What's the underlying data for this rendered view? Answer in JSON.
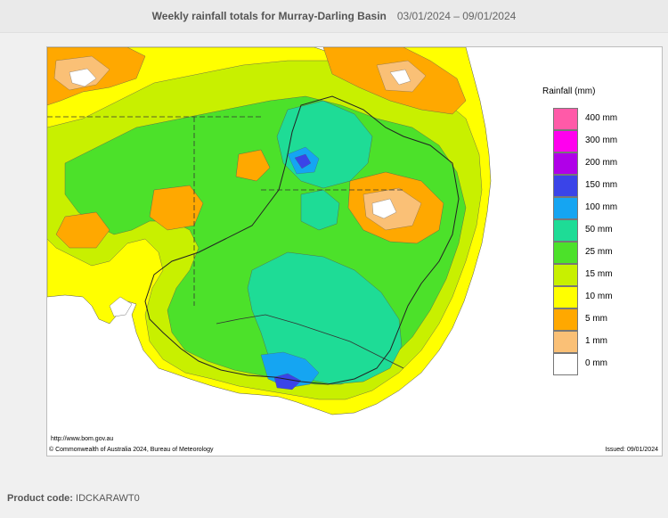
{
  "header": {
    "title": "Weekly rainfall totals for Murray-Darling Basin",
    "dates": "03/01/2024 – 09/01/2024"
  },
  "map": {
    "url": "http://www.bom.gov.au",
    "copyright": "© Commonwealth of Australia 2024, Bureau of Meteorology",
    "issued": "Issued: 09/01/2024"
  },
  "legend": {
    "title": "Rainfall (mm)",
    "items": [
      {
        "label": "400 mm",
        "color": "#ff5aa8"
      },
      {
        "label": "300 mm",
        "color": "#ff00ee"
      },
      {
        "label": "200 mm",
        "color": "#b000e8"
      },
      {
        "label": "150 mm",
        "color": "#3a44e8"
      },
      {
        "label": "100 mm",
        "color": "#15a5f2"
      },
      {
        "label": "50 mm",
        "color": "#1edc96"
      },
      {
        "label": "25 mm",
        "color": "#4ce12a"
      },
      {
        "label": "15 mm",
        "color": "#c8f000"
      },
      {
        "label": "10 mm",
        "color": "#ffff00"
      },
      {
        "label": "5 mm",
        "color": "#ffa800"
      },
      {
        "label": "1 mm",
        "color": "#fac076"
      },
      {
        "label": "0 mm",
        "color": "#ffffff"
      }
    ]
  },
  "footer": {
    "label": "Product code:",
    "code": "IDCKARAWT0"
  }
}
